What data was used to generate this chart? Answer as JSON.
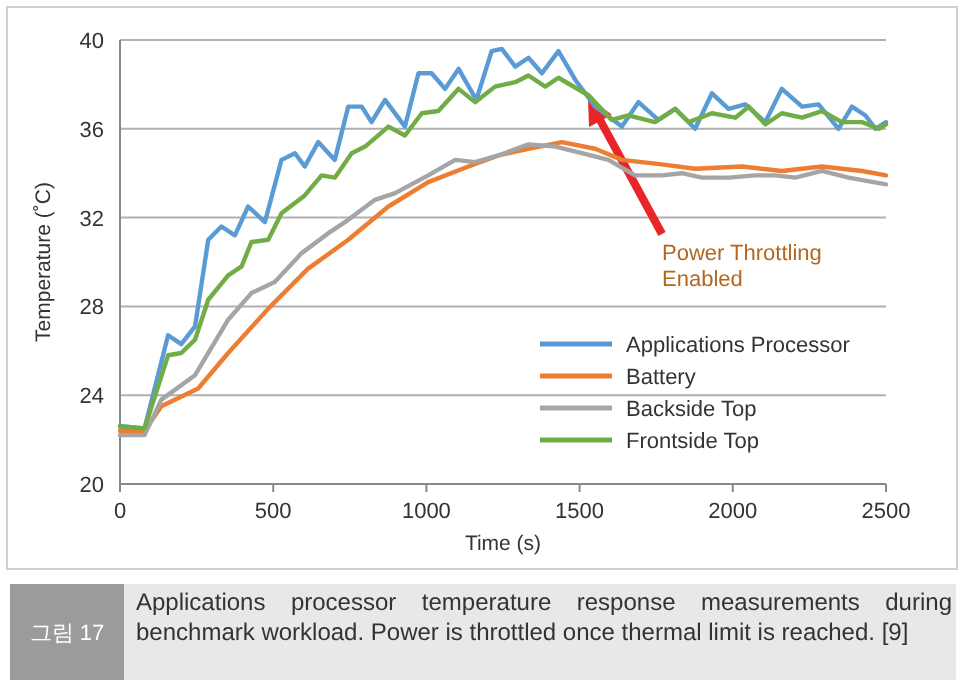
{
  "chart_data": {
    "type": "line",
    "xlabel": "Time (s)",
    "ylabel": "Temperature (˚C)",
    "xlim": [
      0,
      2500
    ],
    "ylim": [
      20,
      40
    ],
    "xticks": [
      0,
      500,
      1000,
      1500,
      2000,
      2500
    ],
    "yticks": [
      20,
      24,
      28,
      32,
      36,
      40
    ],
    "grid": "y",
    "legend": "bottom right",
    "series": [
      {
        "name": "Applications Processor",
        "color": "#5b9bd5",
        "x": [
          0,
          80,
          157,
          200,
          245,
          288,
          331,
          375,
          418,
          473,
          527,
          571,
          603,
          647,
          701,
          745,
          789,
          821,
          865,
          930,
          974,
          1017,
          1061,
          1105,
          1163,
          1213,
          1246,
          1290,
          1333,
          1377,
          1431,
          1486,
          1551,
          1638,
          1692,
          1757,
          1812,
          1877,
          1932,
          1986,
          2041,
          2106,
          2160,
          2226,
          2280,
          2345,
          2389,
          2433,
          2466,
          2500
        ],
        "values": [
          22.6,
          22.5,
          26.7,
          26.3,
          27.1,
          31.0,
          31.6,
          31.2,
          32.5,
          31.8,
          34.6,
          34.9,
          34.3,
          35.4,
          34.6,
          37.0,
          37.0,
          36.3,
          37.3,
          36.1,
          38.5,
          38.5,
          37.8,
          38.7,
          37.3,
          39.5,
          39.6,
          38.8,
          39.2,
          38.5,
          39.5,
          38.2,
          37.0,
          36.1,
          37.2,
          36.4,
          36.9,
          36.0,
          37.6,
          36.9,
          37.1,
          36.3,
          37.8,
          37.0,
          37.1,
          36.0,
          37.0,
          36.6,
          36.0,
          36.3
        ]
      },
      {
        "name": "Battery",
        "color": "#ed7d31",
        "x": [
          0,
          80,
          135,
          255,
          353,
          484,
          614,
          745,
          876,
          1006,
          1137,
          1235,
          1333,
          1442,
          1551,
          1638,
          1768,
          1877,
          2030,
          2160,
          2291,
          2422,
          2500
        ],
        "values": [
          22.4,
          22.4,
          23.5,
          24.3,
          25.9,
          27.9,
          29.7,
          31.0,
          32.5,
          33.6,
          34.3,
          34.8,
          35.1,
          35.4,
          35.1,
          34.6,
          34.4,
          34.2,
          34.3,
          34.1,
          34.3,
          34.1,
          33.9
        ]
      },
      {
        "name": "Backside Top",
        "color": "#a5a5a5",
        "x": [
          0,
          80,
          135,
          245,
          353,
          429,
          505,
          593,
          680,
          745,
          832,
          898,
          1006,
          1094,
          1159,
          1235,
          1333,
          1421,
          1507,
          1594,
          1681,
          1768,
          1834,
          1899,
          1986,
          2073,
          2139,
          2204,
          2291,
          2378,
          2500
        ],
        "values": [
          22.2,
          22.2,
          23.8,
          24.9,
          27.4,
          28.6,
          29.1,
          30.4,
          31.3,
          31.9,
          32.8,
          33.1,
          33.9,
          34.6,
          34.5,
          34.8,
          35.3,
          35.2,
          34.9,
          34.6,
          33.9,
          33.9,
          34.0,
          33.8,
          33.8,
          33.9,
          33.9,
          33.8,
          34.1,
          33.8,
          33.5
        ]
      },
      {
        "name": "Frontside Top",
        "color": "#70ad47",
        "x": [
          0,
          80,
          157,
          200,
          245,
          288,
          353,
          397,
          429,
          484,
          527,
          603,
          658,
          701,
          756,
          800,
          876,
          930,
          985,
          1039,
          1105,
          1159,
          1224,
          1290,
          1333,
          1388,
          1431,
          1530,
          1605,
          1659,
          1746,
          1812,
          1856,
          1932,
          2008,
          2052,
          2106,
          2160,
          2226,
          2291,
          2356,
          2422,
          2477,
          2500
        ],
        "values": [
          22.6,
          22.5,
          25.8,
          25.9,
          26.5,
          28.3,
          29.4,
          29.8,
          30.9,
          31.0,
          32.2,
          33.0,
          33.9,
          33.8,
          34.9,
          35.2,
          36.1,
          35.7,
          36.7,
          36.8,
          37.8,
          37.2,
          37.9,
          38.1,
          38.4,
          37.9,
          38.3,
          37.5,
          36.4,
          36.6,
          36.3,
          36.9,
          36.3,
          36.7,
          36.5,
          37.0,
          36.2,
          36.7,
          36.5,
          36.8,
          36.3,
          36.3,
          36.0,
          36.2
        ]
      }
    ],
    "annotations": [
      "Power Throttling\nEnabled",
      "그림 17",
      "Applications processor temperature response measurements during benchmark workload. Power is throttled once thermal limit is reached. [9]"
    ]
  }
}
